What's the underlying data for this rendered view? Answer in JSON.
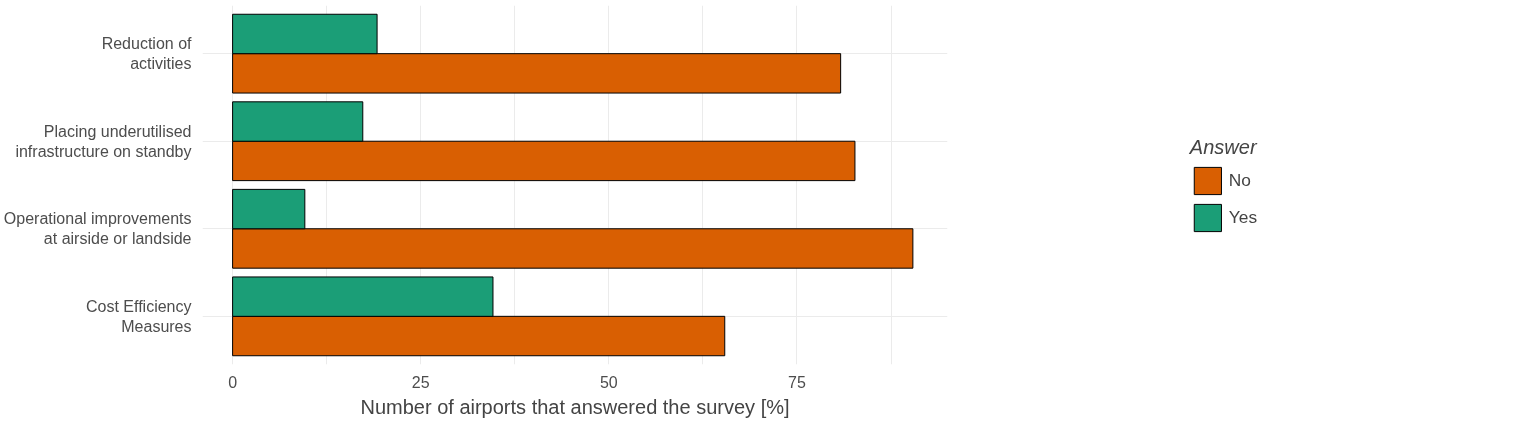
{
  "chart_data": {
    "type": "bar",
    "orientation": "horizontal",
    "xlabel": "Number of airports that answered the survey [%]",
    "legend_title": "Answer",
    "categories": [
      "Reduction of\nactivities",
      "Placing underutilised\ninfrastructure on standby",
      "Operational improvements\nat airside or landside",
      "Cost Efficiency\nMeasures"
    ],
    "series": [
      {
        "name": "No",
        "color": "#d95f02",
        "values": [
          80.8,
          82.7,
          90.4,
          65.4
        ]
      },
      {
        "name": "Yes",
        "color": "#1b9e77",
        "values": [
          19.2,
          17.3,
          9.6,
          34.6
        ]
      }
    ],
    "xlim": [
      -4,
      95
    ],
    "xticks": [
      0,
      {
        "value": 12.5,
        "label": null
      },
      25,
      {
        "value": 37.5,
        "label": null
      },
      50,
      {
        "value": 62.5,
        "label": null
      },
      75,
      {
        "value": 87.5,
        "label": null
      }
    ],
    "grid": true,
    "legend": "right"
  }
}
